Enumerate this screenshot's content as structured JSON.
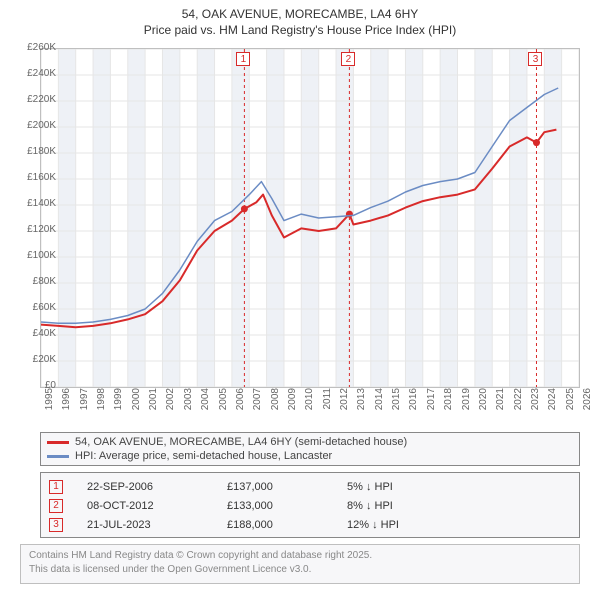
{
  "title_line1": "54, OAK AVENUE, MORECAMBE, LA4 6HY",
  "title_line2": "Price paid vs. HM Land Registry's House Price Index (HPI)",
  "chart": {
    "type": "line",
    "background_color": "#ffffff",
    "border_color": "#bfbfbf",
    "grid_color": "#e6e6e6",
    "x_years": [
      1995,
      1996,
      1997,
      1998,
      1999,
      2000,
      2001,
      2002,
      2003,
      2004,
      2005,
      2006,
      2007,
      2008,
      2009,
      2010,
      2011,
      2012,
      2013,
      2014,
      2015,
      2016,
      2017,
      2018,
      2019,
      2020,
      2021,
      2022,
      2023,
      2024,
      2025,
      2026
    ],
    "xlim": [
      1995,
      2026
    ],
    "ylim": [
      0,
      260000
    ],
    "ytick_step": 20000,
    "ytick_labels": [
      "£0",
      "£20K",
      "£40K",
      "£60K",
      "£80K",
      "£100K",
      "£120K",
      "£140K",
      "£160K",
      "£180K",
      "£200K",
      "£220K",
      "£240K",
      "£260K"
    ],
    "series": [
      {
        "name": "price_paid",
        "label": "54, OAK AVENUE, MORECAMBE, LA4 6HY (semi-detached house)",
        "color": "#d82a2a",
        "line_width": 2,
        "points": [
          [
            1995.0,
            48000
          ],
          [
            1996.0,
            47000
          ],
          [
            1997.0,
            46000
          ],
          [
            1998.0,
            47000
          ],
          [
            1999.0,
            49000
          ],
          [
            2000.0,
            52000
          ],
          [
            2001.0,
            56000
          ],
          [
            2002.0,
            66000
          ],
          [
            2003.0,
            82000
          ],
          [
            2004.0,
            105000
          ],
          [
            2005.0,
            120000
          ],
          [
            2006.0,
            128000
          ],
          [
            2006.72,
            137000
          ],
          [
            2007.4,
            142000
          ],
          [
            2007.8,
            148000
          ],
          [
            2008.3,
            132000
          ],
          [
            2009.0,
            115000
          ],
          [
            2010.0,
            122000
          ],
          [
            2011.0,
            120000
          ],
          [
            2012.0,
            122000
          ],
          [
            2012.77,
            133000
          ],
          [
            2013.0,
            125000
          ],
          [
            2014.0,
            128000
          ],
          [
            2015.0,
            132000
          ],
          [
            2016.0,
            138000
          ],
          [
            2017.0,
            143000
          ],
          [
            2018.0,
            146000
          ],
          [
            2019.0,
            148000
          ],
          [
            2020.0,
            152000
          ],
          [
            2021.0,
            168000
          ],
          [
            2022.0,
            185000
          ],
          [
            2023.0,
            192000
          ],
          [
            2023.55,
            188000
          ],
          [
            2024.0,
            196000
          ],
          [
            2024.7,
            198000
          ]
        ]
      },
      {
        "name": "hpi",
        "label": "HPI: Average price, semi-detached house, Lancaster",
        "color": "#6b8cc4",
        "line_width": 1.5,
        "points": [
          [
            1995.0,
            50000
          ],
          [
            1996.0,
            49000
          ],
          [
            1997.0,
            49000
          ],
          [
            1998.0,
            50000
          ],
          [
            1999.0,
            52000
          ],
          [
            2000.0,
            55000
          ],
          [
            2001.0,
            60000
          ],
          [
            2002.0,
            72000
          ],
          [
            2003.0,
            90000
          ],
          [
            2004.0,
            112000
          ],
          [
            2005.0,
            128000
          ],
          [
            2006.0,
            135000
          ],
          [
            2007.0,
            148000
          ],
          [
            2007.7,
            158000
          ],
          [
            2008.3,
            145000
          ],
          [
            2009.0,
            128000
          ],
          [
            2010.0,
            133000
          ],
          [
            2011.0,
            130000
          ],
          [
            2012.0,
            131000
          ],
          [
            2013.0,
            132000
          ],
          [
            2014.0,
            138000
          ],
          [
            2015.0,
            143000
          ],
          [
            2016.0,
            150000
          ],
          [
            2017.0,
            155000
          ],
          [
            2018.0,
            158000
          ],
          [
            2019.0,
            160000
          ],
          [
            2020.0,
            165000
          ],
          [
            2021.0,
            185000
          ],
          [
            2022.0,
            205000
          ],
          [
            2023.0,
            215000
          ],
          [
            2024.0,
            225000
          ],
          [
            2024.8,
            230000
          ]
        ]
      }
    ],
    "shaded_year_bands": {
      "color": "#eef1f6",
      "years": [
        1996,
        1998,
        2000,
        2002,
        2004,
        2006,
        2008,
        2010,
        2012,
        2014,
        2016,
        2018,
        2020,
        2022,
        2024
      ]
    },
    "sale_markers": [
      {
        "n": "1",
        "year": 2006.72,
        "price": 137000
      },
      {
        "n": "2",
        "year": 2012.77,
        "price": 133000
      },
      {
        "n": "3",
        "year": 2023.55,
        "price": 188000
      }
    ],
    "marker_line_color": "#d82a2a"
  },
  "legend": {
    "items": [
      {
        "color": "#d82a2a",
        "label": "54, OAK AVENUE, MORECAMBE, LA4 6HY (semi-detached house)"
      },
      {
        "color": "#6b8cc4",
        "label": "HPI: Average price, semi-detached house, Lancaster"
      }
    ]
  },
  "sales": [
    {
      "n": "1",
      "date": "22-SEP-2006",
      "price": "£137,000",
      "diff": "5% ↓ HPI"
    },
    {
      "n": "2",
      "date": "08-OCT-2012",
      "price": "£133,000",
      "diff": "8% ↓ HPI"
    },
    {
      "n": "3",
      "date": "21-JUL-2023",
      "price": "£188,000",
      "diff": "12% ↓ HPI"
    }
  ],
  "attribution_line1": "Contains HM Land Registry data © Crown copyright and database right 2025.",
  "attribution_line2": "This data is licensed under the Open Government Licence v3.0."
}
